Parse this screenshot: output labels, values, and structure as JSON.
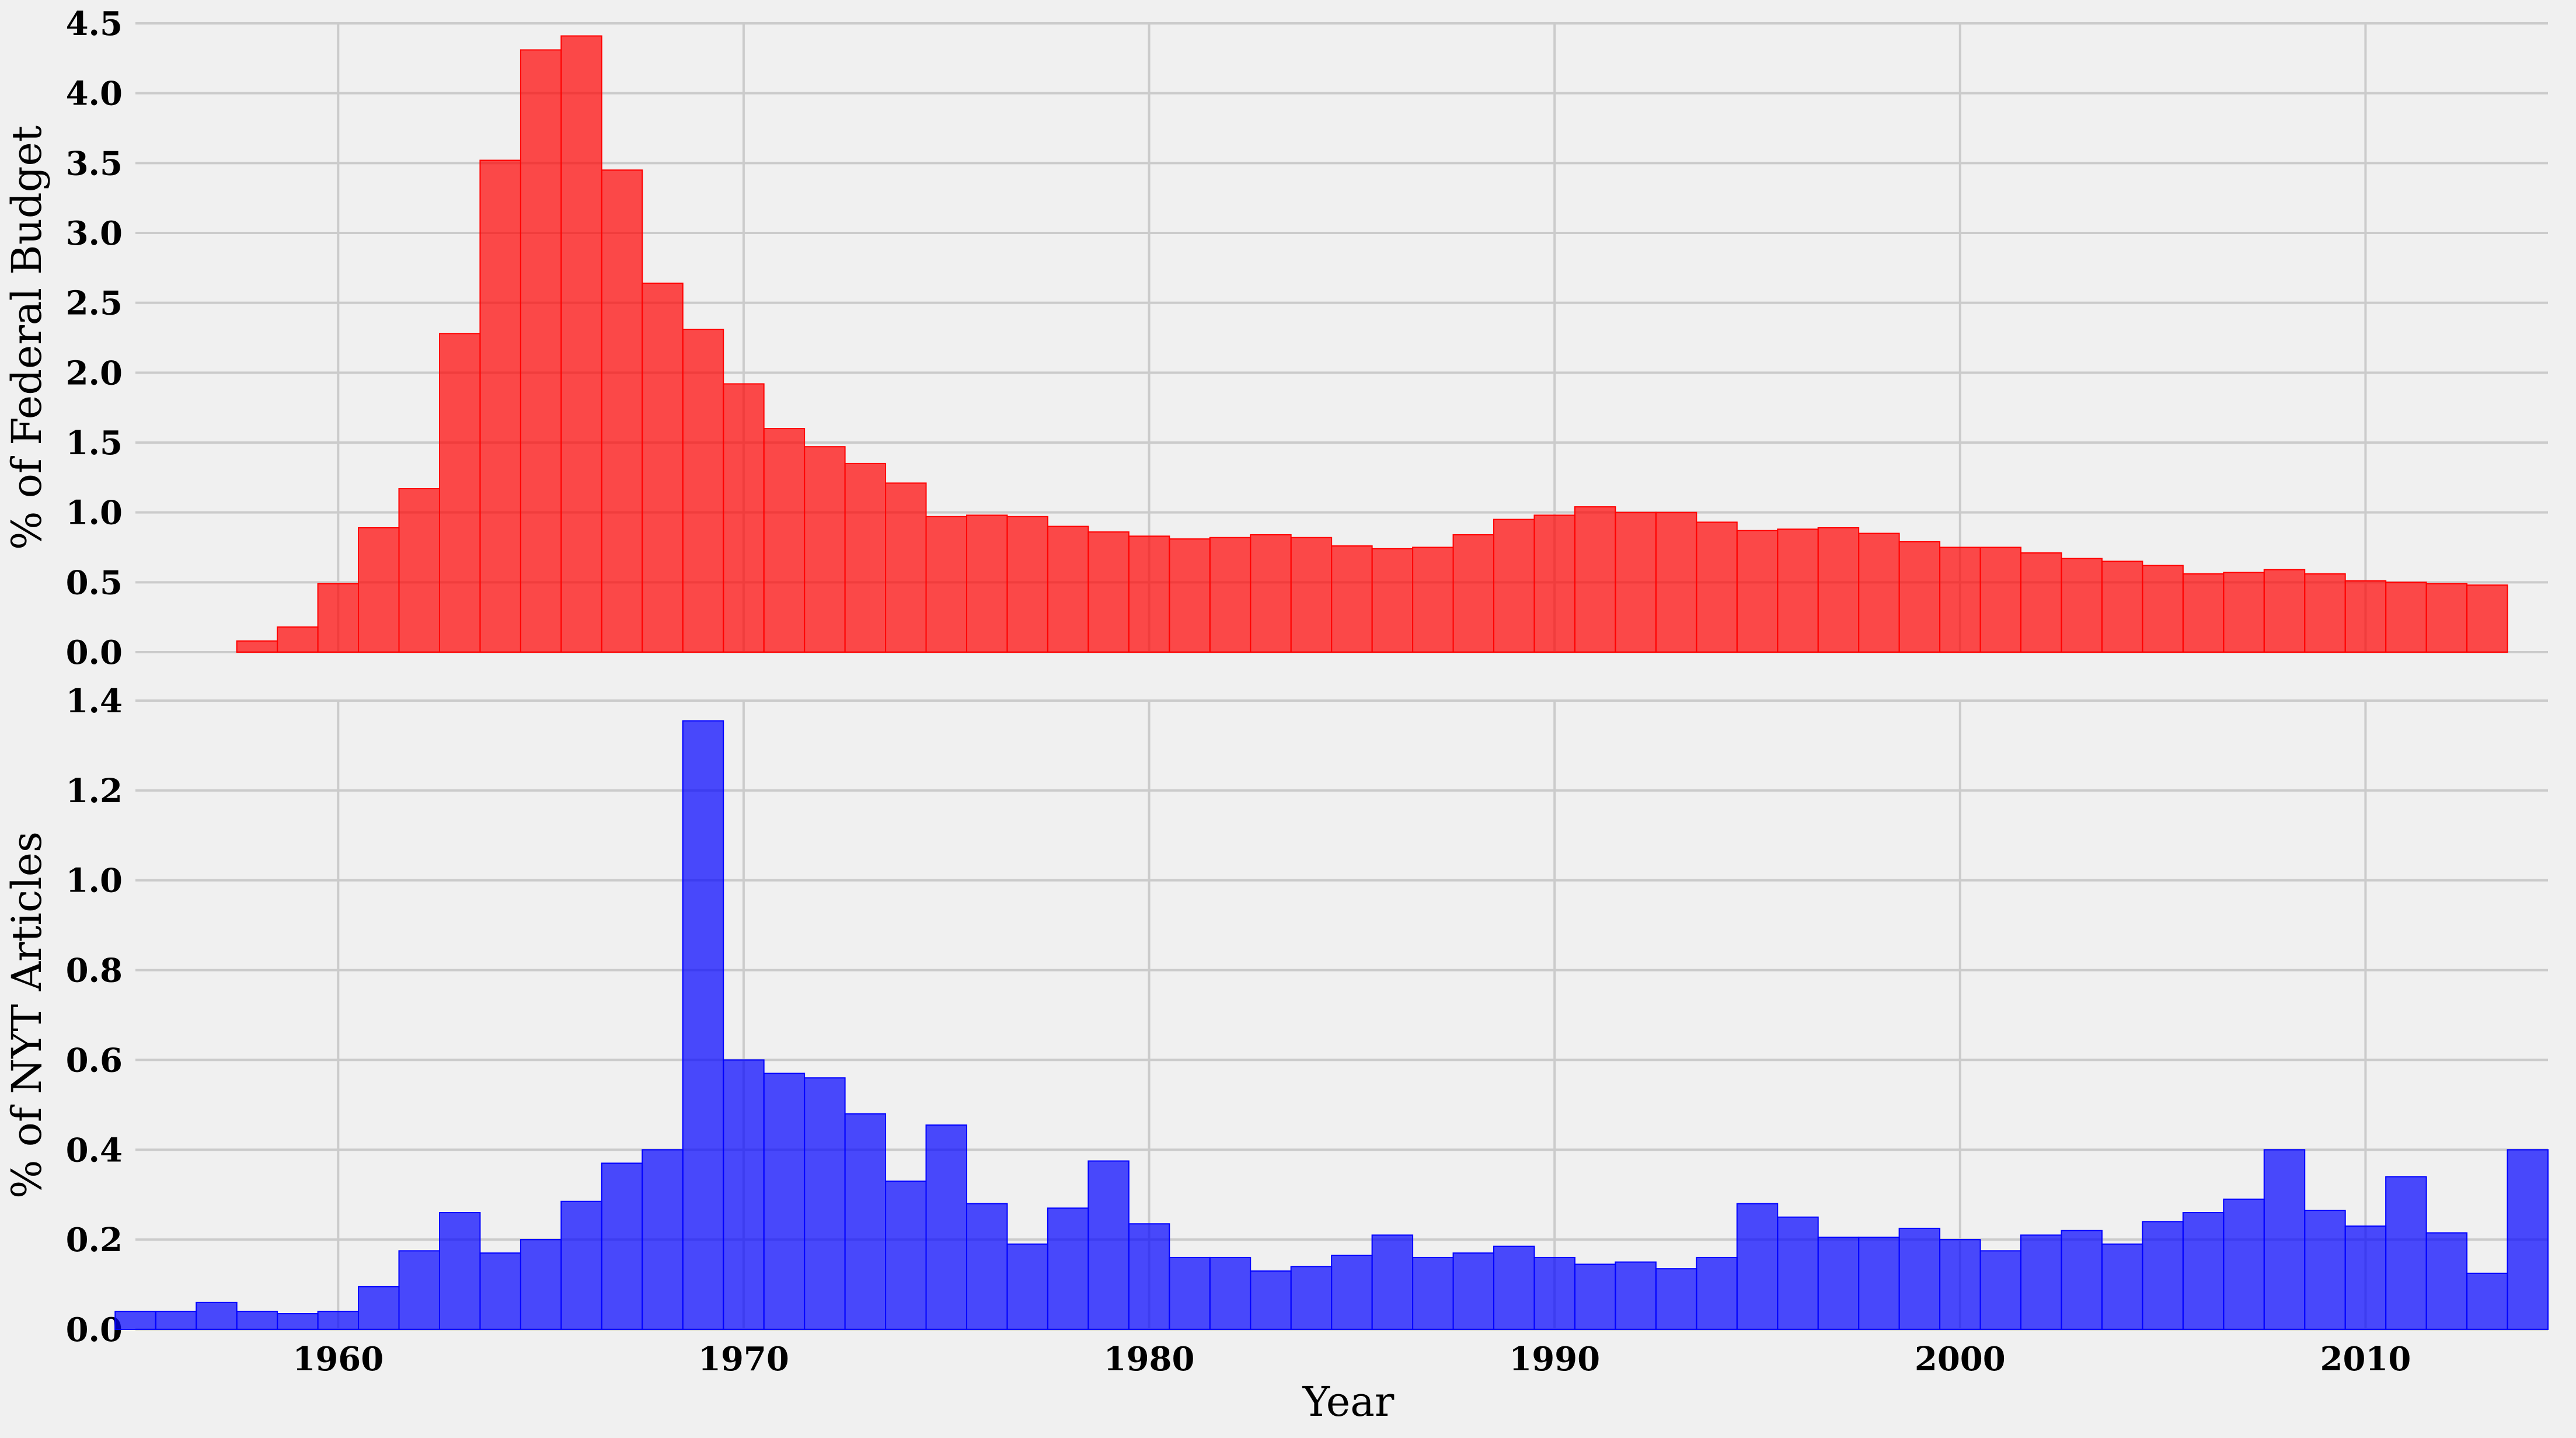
{
  "chart_data": [
    {
      "type": "bar",
      "ylabel": "% of Federal Budget",
      "xlabel": "",
      "ylim": [
        0,
        4.5
      ],
      "xlim": [
        1955,
        2014.5
      ],
      "grid": true,
      "color": "#ff0000",
      "yticks": [
        "0.0",
        "0.5",
        "1.0",
        "1.5",
        "2.0",
        "2.5",
        "3.0",
        "3.5",
        "4.0",
        "4.5"
      ],
      "xticks": [
        "1960",
        "1970",
        "1980",
        "1990",
        "2000",
        "2010"
      ],
      "x": [
        1957.5,
        1958.5,
        1959.5,
        1960.5,
        1961.5,
        1962.5,
        1963.5,
        1964.5,
        1965.5,
        1966.5,
        1967.5,
        1968.5,
        1969.5,
        1970.5,
        1971.5,
        1972.5,
        1973.5,
        1974.5,
        1975.5,
        1976.5,
        1977.5,
        1978.5,
        1979.5,
        1980.5,
        1981.5,
        1982.5,
        1983.5,
        1984.5,
        1985.5,
        1986.5,
        1987.5,
        1988.5,
        1989.5,
        1990.5,
        1991.5,
        1992.5,
        1993.5,
        1994.5,
        1995.5,
        1996.5,
        1997.5,
        1998.5,
        1999.5,
        2000.5,
        2001.5,
        2002.5,
        2003.5,
        2004.5,
        2005.5,
        2006.5,
        2007.5,
        2008.5,
        2009.5,
        2010.5,
        2011.5,
        2012.5
      ],
      "values": [
        0.08,
        0.18,
        0.49,
        0.89,
        1.17,
        2.28,
        3.52,
        4.31,
        4.41,
        3.45,
        2.64,
        2.31,
        1.92,
        1.6,
        1.47,
        1.35,
        1.21,
        0.97,
        0.98,
        0.97,
        0.9,
        0.86,
        0.83,
        0.81,
        0.82,
        0.84,
        0.82,
        0.76,
        0.74,
        0.75,
        0.84,
        0.95,
        0.98,
        1.04,
        1.0,
        1.0,
        0.93,
        0.87,
        0.88,
        0.89,
        0.85,
        0.79,
        0.75,
        0.75,
        0.71,
        0.67,
        0.65,
        0.62,
        0.56,
        0.57,
        0.59,
        0.56,
        0.51,
        0.5,
        0.49,
        0.48
      ]
    },
    {
      "type": "bar",
      "ylabel": "% of NYT Articles",
      "xlabel": "Year",
      "ylim": [
        0,
        1.4
      ],
      "xlim": [
        1955,
        2014.5
      ],
      "grid": true,
      "color": "#0000ff",
      "yticks": [
        "0.0",
        "0.2",
        "0.4",
        "0.6",
        "0.8",
        "1.0",
        "1.2",
        "1.4"
      ],
      "xticks": [
        "1960",
        "1970",
        "1980",
        "1990",
        "2000",
        "2010"
      ],
      "x": [
        1954.5,
        1955.5,
        1956.5,
        1957.5,
        1958.5,
        1959.5,
        1960.5,
        1961.5,
        1962.5,
        1963.5,
        1964.5,
        1965.5,
        1966.5,
        1967.5,
        1968.5,
        1969.5,
        1970.5,
        1971.5,
        1972.5,
        1973.5,
        1974.5,
        1975.5,
        1976.5,
        1977.5,
        1978.5,
        1979.5,
        1980.5,
        1981.5,
        1982.5,
        1983.5,
        1984.5,
        1985.5,
        1986.5,
        1987.5,
        1988.5,
        1989.5,
        1990.5,
        1991.5,
        1992.5,
        1993.5,
        1994.5,
        1995.5,
        1996.5,
        1997.5,
        1998.5,
        1999.5,
        2000.5,
        2001.5,
        2002.5,
        2003.5,
        2004.5,
        2005.5,
        2006.5,
        2007.5,
        2008.5,
        2009.5,
        2010.5,
        2011.5,
        2012.5,
        2013.5
      ],
      "values": [
        0.04,
        0.04,
        0.06,
        0.04,
        0.035,
        0.04,
        0.095,
        0.175,
        0.26,
        0.17,
        0.2,
        0.285,
        0.37,
        0.4,
        1.355,
        0.6,
        0.57,
        0.56,
        0.48,
        0.33,
        0.455,
        0.28,
        0.19,
        0.27,
        0.375,
        0.235,
        0.16,
        0.16,
        0.13,
        0.14,
        0.165,
        0.21,
        0.16,
        0.17,
        0.185,
        0.16,
        0.145,
        0.15,
        0.135,
        0.16,
        0.28,
        0.25,
        0.205,
        0.205,
        0.225,
        0.2,
        0.175,
        0.21,
        0.22,
        0.19,
        0.24,
        0.26,
        0.29,
        0.4,
        0.265,
        0.23,
        0.34,
        0.215,
        0.125,
        0.4
      ]
    }
  ]
}
